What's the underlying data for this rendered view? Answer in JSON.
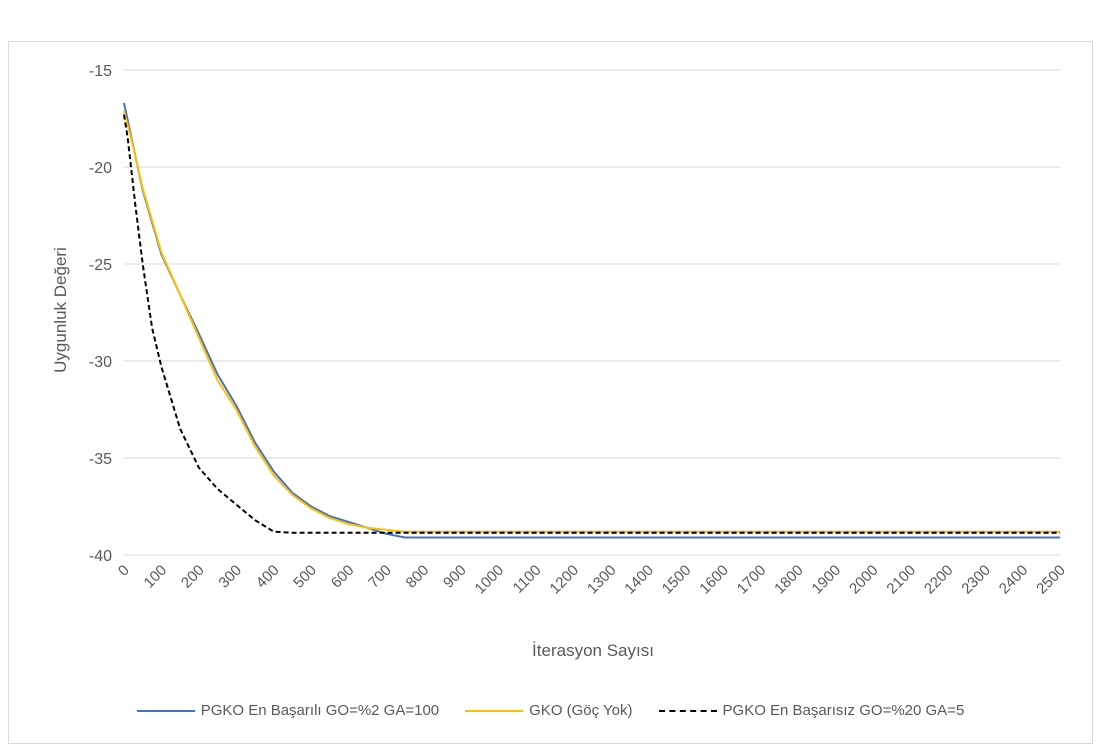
{
  "chart_data": {
    "type": "line",
    "title": "",
    "xlabel": "İterasyon Sayısı",
    "ylabel": "Uygunluk Değeri",
    "xlim": [
      0,
      2500
    ],
    "ylim": [
      -40,
      -15
    ],
    "x_ticks": [
      0,
      100,
      200,
      300,
      400,
      500,
      600,
      700,
      800,
      900,
      1000,
      1100,
      1200,
      1300,
      1400,
      1500,
      1600,
      1700,
      1800,
      1900,
      2000,
      2100,
      2200,
      2300,
      2400,
      2500
    ],
    "y_ticks": [
      -15,
      -20,
      -25,
      -30,
      -35,
      -40
    ],
    "grid": "horizontal",
    "legend_position": "bottom",
    "series": [
      {
        "name": "PGKO En Başarılı GO=%2 GA=100",
        "color": "#4472c4",
        "dash": "solid",
        "x": [
          0,
          20,
          50,
          100,
          150,
          200,
          250,
          300,
          350,
          400,
          450,
          500,
          550,
          600,
          650,
          700,
          750,
          800,
          900,
          1000,
          1500,
          2000,
          2500
        ],
        "y": [
          -16.7,
          -18.5,
          -21.2,
          -24.5,
          -26.6,
          -28.6,
          -30.7,
          -32.3,
          -34.2,
          -35.7,
          -36.8,
          -37.5,
          -38.0,
          -38.3,
          -38.6,
          -38.9,
          -39.1,
          -39.1,
          -39.1,
          -39.1,
          -39.1,
          -39.1,
          -39.1
        ]
      },
      {
        "name": "GKO (Göç Yok)",
        "color": "#ffc000",
        "dash": "solid",
        "x": [
          0,
          20,
          50,
          100,
          150,
          200,
          250,
          300,
          350,
          400,
          450,
          500,
          550,
          600,
          650,
          700,
          750,
          800,
          900,
          1000,
          1500,
          2000,
          2500
        ],
        "y": [
          -17.1,
          -18.6,
          -21.1,
          -24.4,
          -26.6,
          -28.8,
          -31.0,
          -32.5,
          -34.4,
          -35.9,
          -36.9,
          -37.6,
          -38.1,
          -38.4,
          -38.6,
          -38.7,
          -38.8,
          -38.8,
          -38.8,
          -38.8,
          -38.8,
          -38.8,
          -38.8
        ]
      },
      {
        "name": "PGKO En Başarısız GO=%20 GA=5",
        "color": "#000000",
        "dash": "dashed",
        "x": [
          0,
          10,
          30,
          50,
          75,
          100,
          150,
          200,
          250,
          300,
          350,
          400,
          450,
          500,
          600,
          700,
          1000,
          1500,
          2000,
          2500
        ],
        "y": [
          -17.3,
          -18.5,
          -21.9,
          -25.0,
          -28.3,
          -30.3,
          -33.5,
          -35.5,
          -36.6,
          -37.4,
          -38.2,
          -38.8,
          -38.85,
          -38.85,
          -38.85,
          -38.85,
          -38.85,
          -38.85,
          -38.85,
          -38.85
        ]
      }
    ]
  }
}
